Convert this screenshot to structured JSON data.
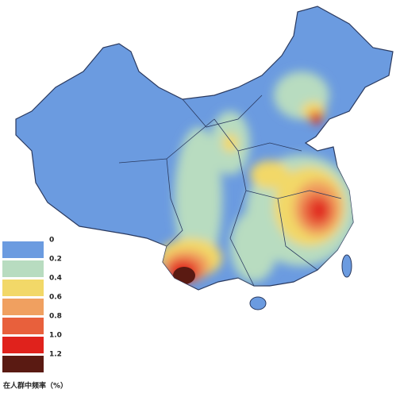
{
  "legend": {
    "items": [
      {
        "label": "0",
        "color": "#6b9be0"
      },
      {
        "label": "0.2",
        "color": "#b8dcc0"
      },
      {
        "label": "0.4",
        "color": "#f2d868"
      },
      {
        "label": "0.6",
        "color": "#f0a060"
      },
      {
        "label": "0.8",
        "color": "#e8603c"
      },
      {
        "label": "1.0",
        "color": "#e0221c"
      },
      {
        "label": "1.2",
        "color": "#5a1a12"
      }
    ],
    "title": "在人群中频率（%）"
  }
}
